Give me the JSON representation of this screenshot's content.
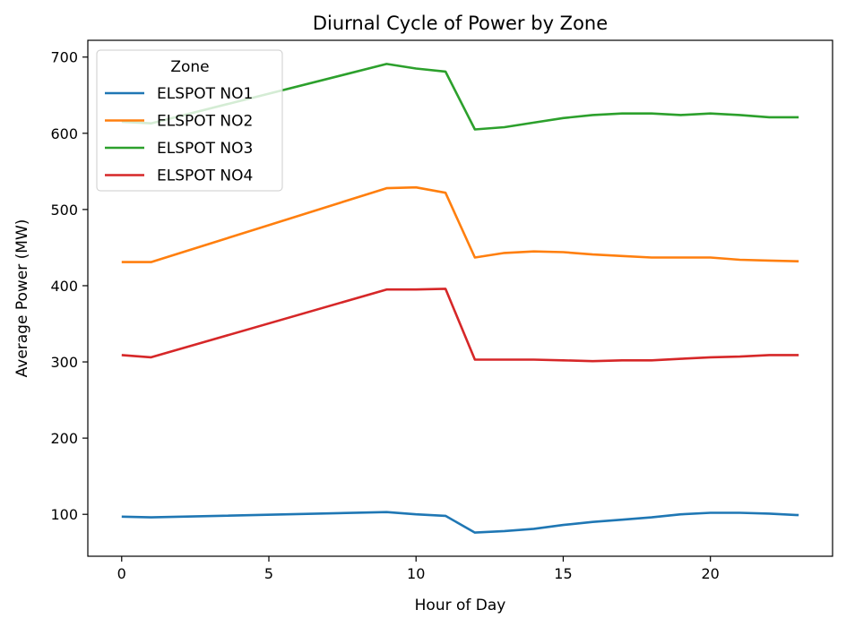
{
  "chart_data": {
    "type": "line",
    "title": "Diurnal Cycle of Power by Zone",
    "xlabel": "Hour of Day",
    "ylabel": "Average Power (MW)",
    "xlim": [
      -1.15,
      24.15
    ],
    "ylim": [
      45,
      722
    ],
    "xticks": [
      0,
      5,
      10,
      15,
      20
    ],
    "yticks": [
      100,
      200,
      300,
      400,
      500,
      600,
      700
    ],
    "grid": false,
    "legend": {
      "title": "Zone",
      "placement": "upper-left"
    },
    "series": [
      {
        "name": "ELSPOT NO1",
        "color": "#1f77b4",
        "x": [
          0,
          1,
          9,
          10,
          11,
          12,
          13,
          14,
          15,
          16,
          17,
          18,
          19,
          20,
          21,
          22,
          23
        ],
        "y": [
          97,
          96,
          103,
          100,
          98,
          76,
          78,
          81,
          86,
          90,
          93,
          96,
          100,
          102,
          102,
          101,
          99
        ]
      },
      {
        "name": "ELSPOT NO2",
        "color": "#ff7f0e",
        "x": [
          0,
          1,
          9,
          10,
          11,
          12,
          13,
          14,
          15,
          16,
          17,
          18,
          19,
          20,
          21,
          22,
          23
        ],
        "y": [
          431,
          431,
          528,
          529,
          522,
          437,
          443,
          445,
          444,
          441,
          439,
          437,
          437,
          437,
          434,
          433,
          432
        ]
      },
      {
        "name": "ELSPOT NO3",
        "color": "#2ca02c",
        "x": [
          0,
          1,
          9,
          10,
          11,
          12,
          13,
          14,
          15,
          16,
          17,
          18,
          19,
          20,
          21,
          22,
          23
        ],
        "y": [
          615,
          613,
          691,
          685,
          681,
          605,
          608,
          614,
          620,
          624,
          626,
          626,
          624,
          626,
          624,
          621,
          621
        ]
      },
      {
        "name": "ELSPOT NO4",
        "color": "#d62728",
        "x": [
          0,
          1,
          9,
          10,
          11,
          12,
          13,
          14,
          15,
          16,
          17,
          18,
          19,
          20,
          21,
          22,
          23
        ],
        "y": [
          309,
          306,
          395,
          395,
          396,
          303,
          303,
          303,
          302,
          301,
          302,
          302,
          304,
          306,
          307,
          309,
          309
        ]
      }
    ]
  }
}
